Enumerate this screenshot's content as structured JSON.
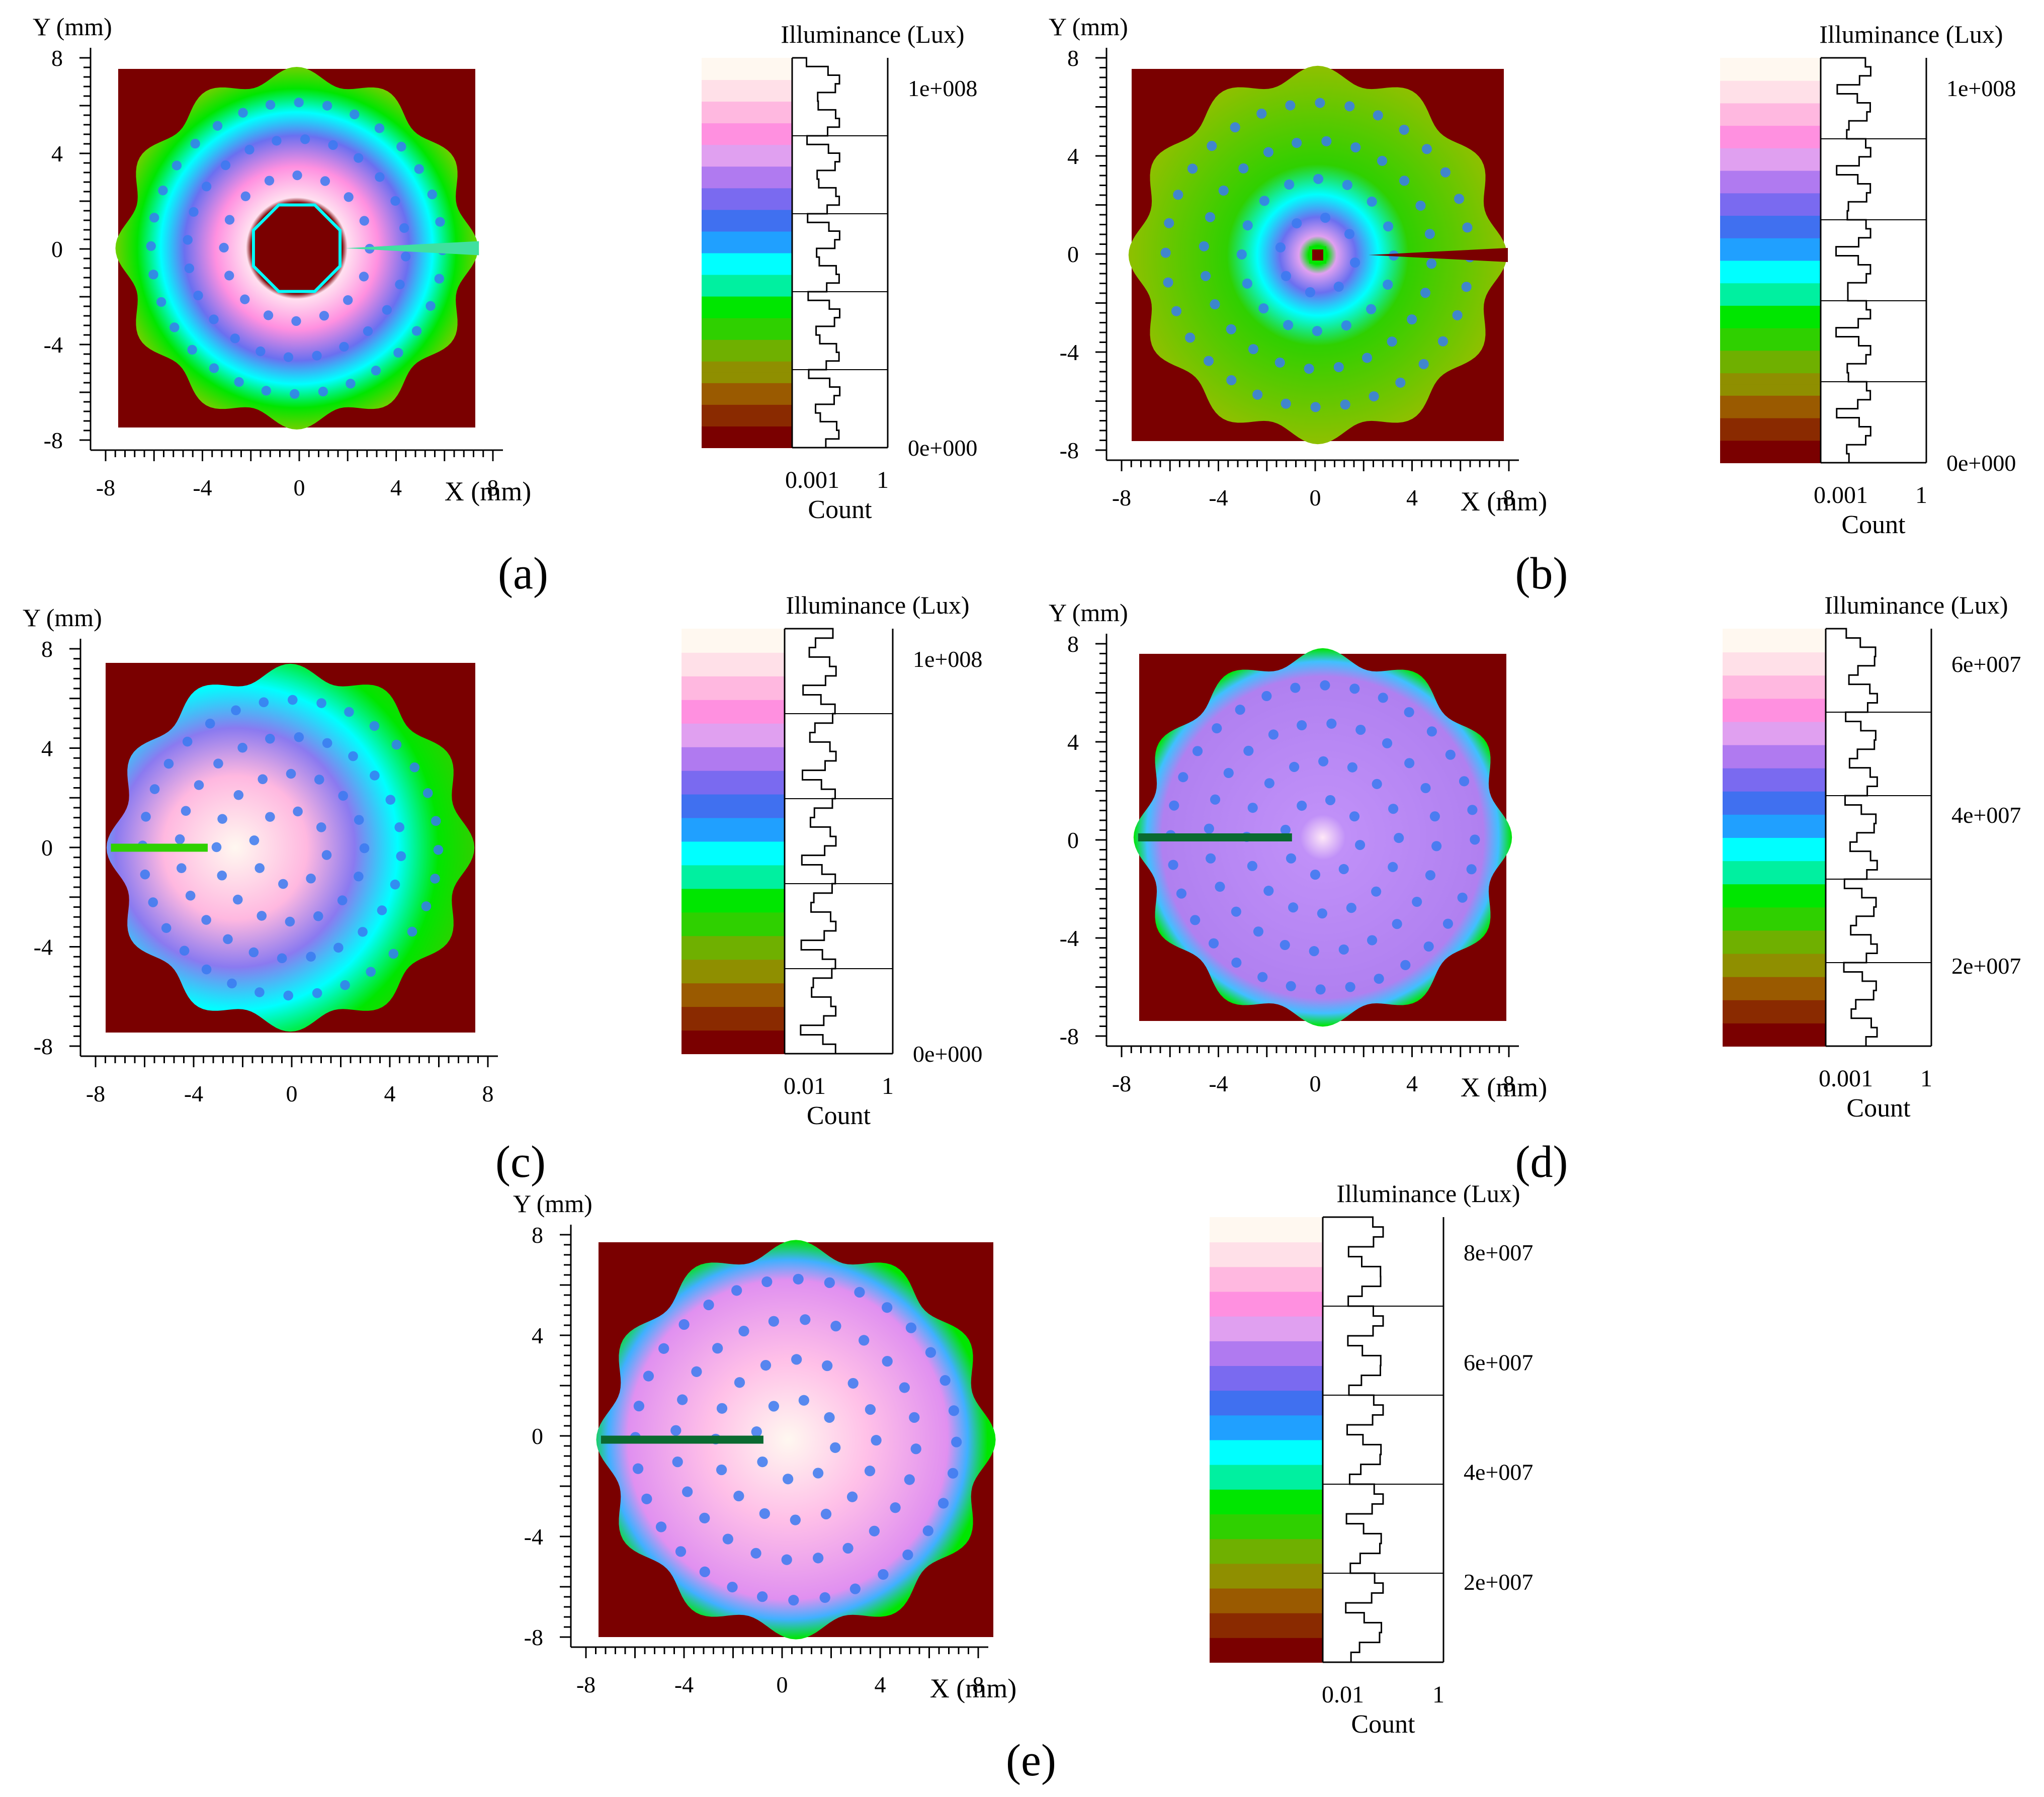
{
  "colors": {
    "background": "#7a0000",
    "colormap": [
      "#7a0000",
      "#8a2a00",
      "#9a5a00",
      "#8f8f00",
      "#6fb000",
      "#2fd000",
      "#00e600",
      "#00f0a0",
      "#00ffff",
      "#20a0ff",
      "#4070f0",
      "#7a6af0",
      "#b07af0",
      "#e0a0f0",
      "#ff90e0",
      "#ffb8e0",
      "#ffe0e8",
      "#fff8f0"
    ]
  },
  "chart_data": [
    {
      "panel": "(a)",
      "type": "heatmap",
      "ylabel": "Y (mm)",
      "xlabel": "X (mm)",
      "xticks": [
        "-8",
        "-4",
        "0",
        "4",
        "8"
      ],
      "yticks": [
        "8",
        "4",
        "0",
        "-4",
        "-8"
      ],
      "xlim": [
        -8,
        8
      ],
      "ylim": [
        -8,
        8
      ],
      "pattern": "ring",
      "colorbar": {
        "title": "Illuminance (Lux)",
        "ticks": [
          "1e+008",
          "0e+000"
        ],
        "xticks": [
          "0.001",
          "1"
        ],
        "xlabel": "Count"
      }
    },
    {
      "panel": "(b)",
      "type": "heatmap",
      "ylabel": "Y (mm)",
      "xlabel": "X (mm)",
      "xticks": [
        "-8",
        "-4",
        "0",
        "4",
        "8"
      ],
      "yticks": [
        "8",
        "4",
        "0",
        "-4",
        "-8"
      ],
      "xlim": [
        -8,
        8
      ],
      "ylim": [
        -8,
        8
      ],
      "pattern": "center-spot",
      "colorbar": {
        "title": "Illuminance (Lux)",
        "ticks": [
          "1e+008",
          "0e+000"
        ],
        "xticks": [
          "0.001",
          "1"
        ],
        "xlabel": "Count"
      }
    },
    {
      "panel": "(c)",
      "type": "heatmap",
      "ylabel": "Y (mm)",
      "xlabel": "",
      "xticks": [
        "-8",
        "-4",
        "0",
        "4",
        "8"
      ],
      "yticks": [
        "8",
        "4",
        "0",
        "-4",
        "-8"
      ],
      "xlim": [
        -8,
        8
      ],
      "ylim": [
        -8,
        8
      ],
      "pattern": "left-bright",
      "colorbar": {
        "title": "Illuminance (Lux)",
        "ticks": [
          "1e+008",
          "0e+000"
        ],
        "xticks": [
          "0.01",
          "1"
        ],
        "xlabel": "Count"
      }
    },
    {
      "panel": "(d)",
      "type": "heatmap",
      "ylabel": "Y (mm)",
      "xlabel": "X (mm)",
      "xticks": [
        "-8",
        "-4",
        "0",
        "4",
        "8"
      ],
      "yticks": [
        "8",
        "4",
        "0",
        "-4",
        "-8"
      ],
      "xlim": [
        -8,
        8
      ],
      "ylim": [
        -8,
        8
      ],
      "pattern": "uniform",
      "colorbar": {
        "title": "Illuminance (Lux)",
        "ticks": [
          "6e+007",
          "4e+007",
          "2e+007"
        ],
        "xticks": [
          "0.001",
          "1"
        ],
        "xlabel": "Count"
      }
    },
    {
      "panel": "(e)",
      "type": "heatmap",
      "ylabel": "Y (mm)",
      "xlabel": "X (mm)",
      "xticks": [
        "-8",
        "-4",
        "0",
        "4",
        "8"
      ],
      "yticks": [
        "8",
        "4",
        "0",
        "-4",
        "-8"
      ],
      "xlim": [
        -8,
        8
      ],
      "ylim": [
        -8,
        8
      ],
      "pattern": "bright-wide",
      "colorbar": {
        "title": "Illuminance (Lux)",
        "ticks": [
          "8e+007",
          "6e+007",
          "4e+007",
          "2e+007"
        ],
        "xticks": [
          "0.01",
          "1"
        ],
        "xlabel": "Count"
      }
    }
  ]
}
